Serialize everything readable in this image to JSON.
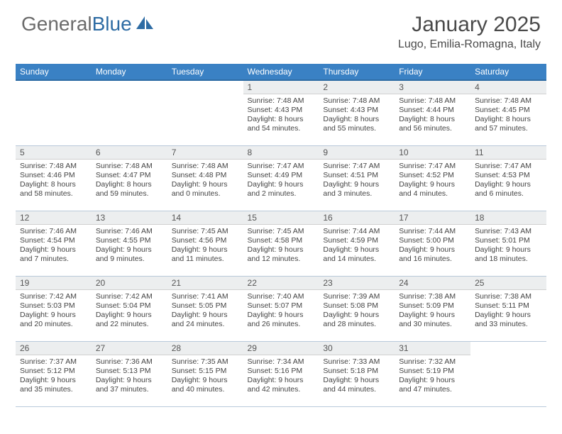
{
  "brand": {
    "general": "General",
    "blue": "Blue"
  },
  "title": "January 2025",
  "location": "Lugo, Emilia-Romagna, Italy",
  "colors": {
    "header_bg": "#3a81c4",
    "header_border": "#2e6ca4",
    "daynum_bg": "#eceeef",
    "row_border": "#b9c9da",
    "text": "#444444",
    "title_text": "#4a4a4a"
  },
  "weekdays": [
    "Sunday",
    "Monday",
    "Tuesday",
    "Wednesday",
    "Thursday",
    "Friday",
    "Saturday"
  ],
  "weeks": [
    [
      null,
      null,
      null,
      {
        "n": "1",
        "sr": "7:48 AM",
        "ss": "4:43 PM",
        "dh": "8",
        "dm": "54"
      },
      {
        "n": "2",
        "sr": "7:48 AM",
        "ss": "4:43 PM",
        "dh": "8",
        "dm": "55"
      },
      {
        "n": "3",
        "sr": "7:48 AM",
        "ss": "4:44 PM",
        "dh": "8",
        "dm": "56"
      },
      {
        "n": "4",
        "sr": "7:48 AM",
        "ss": "4:45 PM",
        "dh": "8",
        "dm": "57"
      }
    ],
    [
      {
        "n": "5",
        "sr": "7:48 AM",
        "ss": "4:46 PM",
        "dh": "8",
        "dm": "58"
      },
      {
        "n": "6",
        "sr": "7:48 AM",
        "ss": "4:47 PM",
        "dh": "8",
        "dm": "59"
      },
      {
        "n": "7",
        "sr": "7:48 AM",
        "ss": "4:48 PM",
        "dh": "9",
        "dm": "0"
      },
      {
        "n": "8",
        "sr": "7:47 AM",
        "ss": "4:49 PM",
        "dh": "9",
        "dm": "2"
      },
      {
        "n": "9",
        "sr": "7:47 AM",
        "ss": "4:51 PM",
        "dh": "9",
        "dm": "3"
      },
      {
        "n": "10",
        "sr": "7:47 AM",
        "ss": "4:52 PM",
        "dh": "9",
        "dm": "4"
      },
      {
        "n": "11",
        "sr": "7:47 AM",
        "ss": "4:53 PM",
        "dh": "9",
        "dm": "6"
      }
    ],
    [
      {
        "n": "12",
        "sr": "7:46 AM",
        "ss": "4:54 PM",
        "dh": "9",
        "dm": "7"
      },
      {
        "n": "13",
        "sr": "7:46 AM",
        "ss": "4:55 PM",
        "dh": "9",
        "dm": "9"
      },
      {
        "n": "14",
        "sr": "7:45 AM",
        "ss": "4:56 PM",
        "dh": "9",
        "dm": "11"
      },
      {
        "n": "15",
        "sr": "7:45 AM",
        "ss": "4:58 PM",
        "dh": "9",
        "dm": "12"
      },
      {
        "n": "16",
        "sr": "7:44 AM",
        "ss": "4:59 PM",
        "dh": "9",
        "dm": "14"
      },
      {
        "n": "17",
        "sr": "7:44 AM",
        "ss": "5:00 PM",
        "dh": "9",
        "dm": "16"
      },
      {
        "n": "18",
        "sr": "7:43 AM",
        "ss": "5:01 PM",
        "dh": "9",
        "dm": "18"
      }
    ],
    [
      {
        "n": "19",
        "sr": "7:42 AM",
        "ss": "5:03 PM",
        "dh": "9",
        "dm": "20"
      },
      {
        "n": "20",
        "sr": "7:42 AM",
        "ss": "5:04 PM",
        "dh": "9",
        "dm": "22"
      },
      {
        "n": "21",
        "sr": "7:41 AM",
        "ss": "5:05 PM",
        "dh": "9",
        "dm": "24"
      },
      {
        "n": "22",
        "sr": "7:40 AM",
        "ss": "5:07 PM",
        "dh": "9",
        "dm": "26"
      },
      {
        "n": "23",
        "sr": "7:39 AM",
        "ss": "5:08 PM",
        "dh": "9",
        "dm": "28"
      },
      {
        "n": "24",
        "sr": "7:38 AM",
        "ss": "5:09 PM",
        "dh": "9",
        "dm": "30"
      },
      {
        "n": "25",
        "sr": "7:38 AM",
        "ss": "5:11 PM",
        "dh": "9",
        "dm": "33"
      }
    ],
    [
      {
        "n": "26",
        "sr": "7:37 AM",
        "ss": "5:12 PM",
        "dh": "9",
        "dm": "35"
      },
      {
        "n": "27",
        "sr": "7:36 AM",
        "ss": "5:13 PM",
        "dh": "9",
        "dm": "37"
      },
      {
        "n": "28",
        "sr": "7:35 AM",
        "ss": "5:15 PM",
        "dh": "9",
        "dm": "40"
      },
      {
        "n": "29",
        "sr": "7:34 AM",
        "ss": "5:16 PM",
        "dh": "9",
        "dm": "42"
      },
      {
        "n": "30",
        "sr": "7:33 AM",
        "ss": "5:18 PM",
        "dh": "9",
        "dm": "44"
      },
      {
        "n": "31",
        "sr": "7:32 AM",
        "ss": "5:19 PM",
        "dh": "9",
        "dm": "47"
      },
      null
    ]
  ],
  "labels": {
    "sunrise": "Sunrise:",
    "sunset": "Sunset:",
    "daylight": "Daylight:",
    "hours": "hours",
    "and": "and",
    "minutes": "minutes."
  }
}
